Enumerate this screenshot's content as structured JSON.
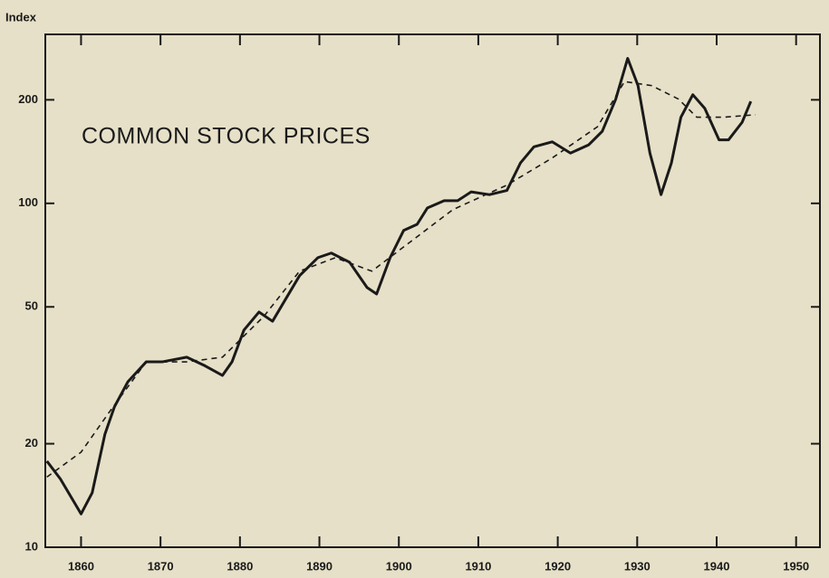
{
  "chart_data": {
    "type": "line",
    "title": "COMMON STOCK PRICES",
    "ylabel": "Index",
    "log_scale_y": true,
    "xlim": [
      1855.5,
      1953
    ],
    "xticks": [
      1860,
      1870,
      1880,
      1890,
      1900,
      1910,
      1920,
      1930,
      1940,
      1950
    ],
    "ylim": [
      10,
      310
    ],
    "yticks": [
      10,
      20,
      50,
      100,
      200
    ],
    "series": [
      {
        "color": "#1a1a1a",
        "style": "solid",
        "x": [
          1855.7,
          1857.4,
          1860,
          1861.4,
          1863,
          1864.2,
          1865.9,
          1868.2,
          1870.2,
          1873.3,
          1875.6,
          1877.8,
          1879,
          1880.5,
          1882.4,
          1884.1,
          1885.8,
          1887.5,
          1889.8,
          1891.5,
          1893.8,
          1896,
          1897.2,
          1898.9,
          1900.6,
          1902.3,
          1903.6,
          1905.7,
          1907.4,
          1909.1,
          1911.4,
          1913.6,
          1915.3,
          1917,
          1919.3,
          1921.6,
          1923.9,
          1925.6,
          1927.3,
          1928.8,
          1930.1,
          1931.6,
          1933,
          1934.3,
          1935.5,
          1937,
          1938.5,
          1940.3,
          1941.5,
          1943.2,
          1944.3
        ],
        "values": [
          17.8,
          15.8,
          12.5,
          14.4,
          21.3,
          25.6,
          30.3,
          34.6,
          34.6,
          35.7,
          33.7,
          31.6,
          34.6,
          42.8,
          48.3,
          45.4,
          52.9,
          61.6,
          69.5,
          71.7,
          67.4,
          56.9,
          54.5,
          69.5,
          83.4,
          86.9,
          97,
          101.8,
          101.8,
          108,
          106,
          109,
          131,
          146,
          151,
          140,
          148,
          162,
          201,
          264,
          220,
          140,
          106,
          131,
          178,
          207,
          189,
          153,
          153,
          172,
          198
        ]
      },
      {
        "color": "#1a1a1a",
        "style": "dashed",
        "x": [
          1855.7,
          1860,
          1863.6,
          1868.2,
          1873.3,
          1877.8,
          1883,
          1887.5,
          1892,
          1896.6,
          1901.1,
          1906.8,
          1913.6,
          1919.3,
          1925,
          1928.4,
          1931.8,
          1935.2,
          1937.5,
          1940.9,
          1944.9
        ],
        "values": [
          16,
          18.9,
          24.8,
          34.6,
          34.6,
          35.7,
          46.9,
          63.5,
          69.5,
          63.5,
          76.2,
          95.9,
          113,
          135.5,
          167,
          226,
          220,
          201,
          178,
          178,
          181
        ]
      }
    ]
  }
}
